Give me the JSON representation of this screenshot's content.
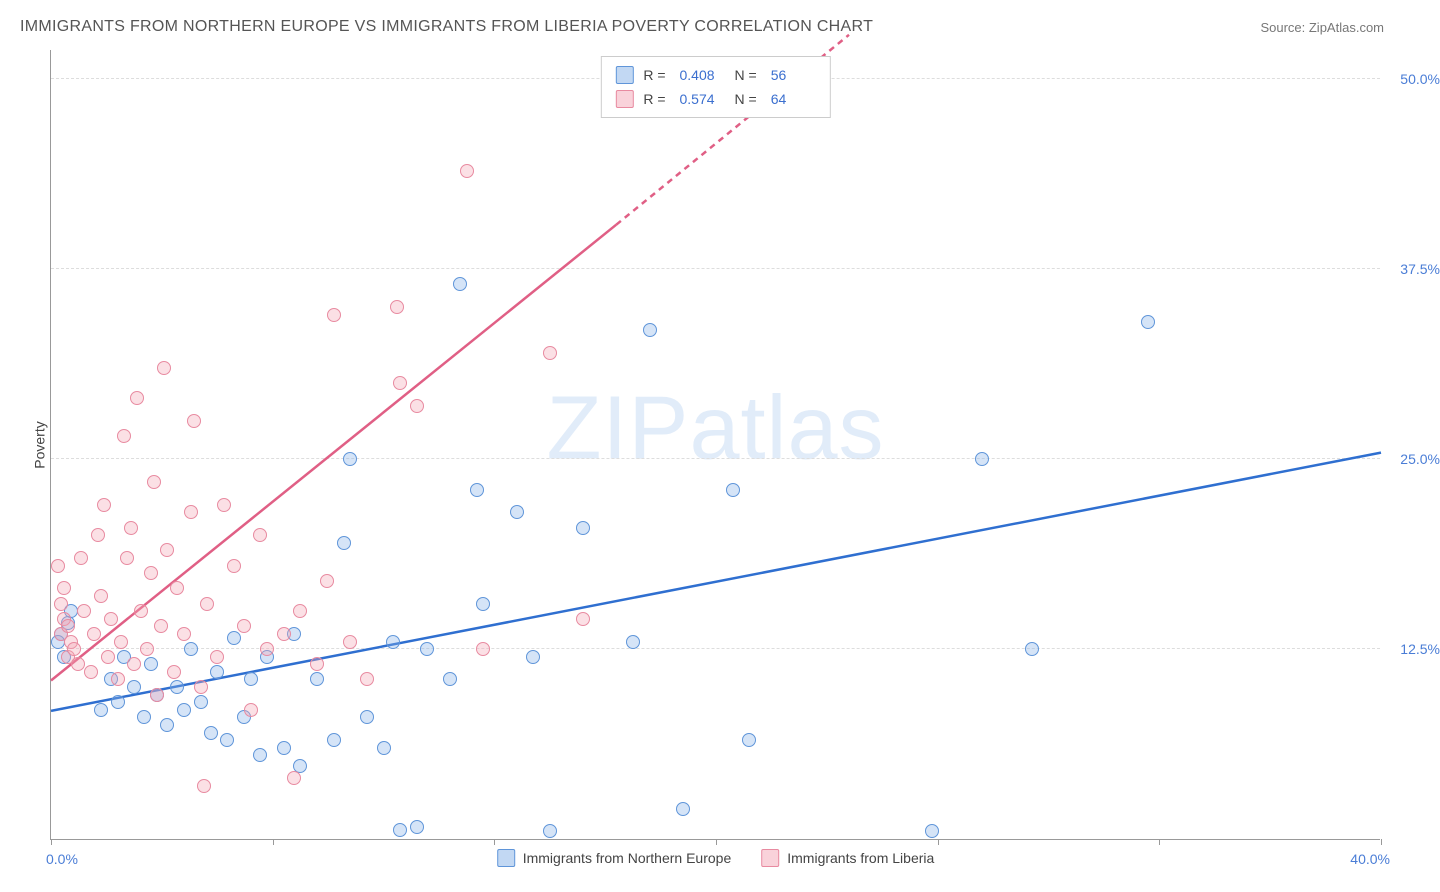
{
  "chart": {
    "title": "IMMIGRANTS FROM NORTHERN EUROPE VS IMMIGRANTS FROM LIBERIA POVERTY CORRELATION CHART",
    "source_label": "Source: ZipAtlas.com",
    "watermark_bold": "ZIP",
    "watermark_thin": "atlas",
    "yaxis_title": "Poverty",
    "type": "scatter-with-regression",
    "xlim": [
      0,
      40
    ],
    "ylim": [
      0,
      52
    ],
    "xtick_min_label": "0.0%",
    "xtick_max_label": "40.0%",
    "ytick_positions": [
      12.5,
      25.0,
      37.5,
      50.0
    ],
    "ytick_labels": [
      "12.5%",
      "25.0%",
      "37.5%",
      "50.0%"
    ],
    "xtick_positions": [
      0,
      6.67,
      13.33,
      20.0,
      26.67,
      33.33,
      40.0
    ],
    "grid_color": "#dddddd",
    "background_color": "#ffffff",
    "axis_color": "#999999",
    "series": [
      {
        "name": "Immigrants from Northern Europe",
        "short": "northern_europe",
        "color_fill": "rgba(134,178,231,0.35)",
        "color_stroke": "#5f95d9",
        "line_color": "#2f6fd0",
        "R_label": "R =",
        "R": "0.408",
        "N_label": "N =",
        "N": "56",
        "regression": {
          "x1": 0,
          "y1": 8.5,
          "x2": 40,
          "y2": 25.5
        },
        "marker_radius": 7,
        "points": [
          [
            0.3,
            13.5
          ],
          [
            0.5,
            14.2
          ],
          [
            0.4,
            12.0
          ],
          [
            0.6,
            15.0
          ],
          [
            0.2,
            13.0
          ],
          [
            1.5,
            8.5
          ],
          [
            1.8,
            10.5
          ],
          [
            2.0,
            9.0
          ],
          [
            2.2,
            12.0
          ],
          [
            2.5,
            10.0
          ],
          [
            2.8,
            8.0
          ],
          [
            3.0,
            11.5
          ],
          [
            3.2,
            9.5
          ],
          [
            3.5,
            7.5
          ],
          [
            3.8,
            10.0
          ],
          [
            4.0,
            8.5
          ],
          [
            4.2,
            12.5
          ],
          [
            4.5,
            9.0
          ],
          [
            4.8,
            7.0
          ],
          [
            5.0,
            11.0
          ],
          [
            5.3,
            6.5
          ],
          [
            5.5,
            13.2
          ],
          [
            5.8,
            8.0
          ],
          [
            6.0,
            10.5
          ],
          [
            6.3,
            5.5
          ],
          [
            6.5,
            12.0
          ],
          [
            7.0,
            6.0
          ],
          [
            7.3,
            13.5
          ],
          [
            7.5,
            4.8
          ],
          [
            8.0,
            10.5
          ],
          [
            8.5,
            6.5
          ],
          [
            8.8,
            19.5
          ],
          [
            9.0,
            25.0
          ],
          [
            9.5,
            8.0
          ],
          [
            10.0,
            6.0
          ],
          [
            10.3,
            13.0
          ],
          [
            10.5,
            0.6
          ],
          [
            11.0,
            0.8
          ],
          [
            11.3,
            12.5
          ],
          [
            12.0,
            10.5
          ],
          [
            12.3,
            36.5
          ],
          [
            12.8,
            23.0
          ],
          [
            13.0,
            15.5
          ],
          [
            14.0,
            21.5
          ],
          [
            14.5,
            12.0
          ],
          [
            15.0,
            0.5
          ],
          [
            16.0,
            20.5
          ],
          [
            17.5,
            13.0
          ],
          [
            18.0,
            33.5
          ],
          [
            19.0,
            2.0
          ],
          [
            20.5,
            23.0
          ],
          [
            21.0,
            6.5
          ],
          [
            26.5,
            0.5
          ],
          [
            28.0,
            25.0
          ],
          [
            33.0,
            34.0
          ],
          [
            29.5,
            12.5
          ]
        ]
      },
      {
        "name": "Immigrants from Liberia",
        "short": "liberia",
        "color_fill": "rgba(244,165,181,0.35)",
        "color_stroke": "#e88aa0",
        "line_color": "#e05f85",
        "R_label": "R =",
        "R": "0.574",
        "N_label": "N =",
        "N": "64",
        "regression": {
          "x1": 0,
          "y1": 10.5,
          "x2": 17,
          "y2": 40.5
        },
        "regression_dashed_extension": {
          "x1": 17,
          "y1": 40.5,
          "x2": 24,
          "y2": 53
        },
        "marker_radius": 7,
        "points": [
          [
            0.2,
            18.0
          ],
          [
            0.3,
            13.5
          ],
          [
            0.4,
            14.5
          ],
          [
            0.5,
            12.0
          ],
          [
            0.3,
            15.5
          ],
          [
            0.6,
            13.0
          ],
          [
            0.8,
            11.5
          ],
          [
            0.4,
            16.5
          ],
          [
            0.5,
            14.0
          ],
          [
            0.7,
            12.5
          ],
          [
            1.0,
            15.0
          ],
          [
            0.9,
            18.5
          ],
          [
            1.2,
            11.0
          ],
          [
            1.3,
            13.5
          ],
          [
            1.5,
            16.0
          ],
          [
            1.4,
            20.0
          ],
          [
            1.7,
            12.0
          ],
          [
            1.8,
            14.5
          ],
          [
            1.6,
            22.0
          ],
          [
            2.0,
            10.5
          ],
          [
            2.1,
            13.0
          ],
          [
            2.3,
            18.5
          ],
          [
            2.2,
            26.5
          ],
          [
            2.5,
            11.5
          ],
          [
            2.4,
            20.5
          ],
          [
            2.7,
            15.0
          ],
          [
            2.6,
            29.0
          ],
          [
            2.9,
            12.5
          ],
          [
            3.0,
            17.5
          ],
          [
            3.2,
            9.5
          ],
          [
            3.1,
            23.5
          ],
          [
            3.3,
            14.0
          ],
          [
            3.5,
            19.0
          ],
          [
            3.4,
            31.0
          ],
          [
            3.7,
            11.0
          ],
          [
            3.8,
            16.5
          ],
          [
            4.0,
            13.5
          ],
          [
            4.2,
            21.5
          ],
          [
            4.3,
            27.5
          ],
          [
            4.5,
            10.0
          ],
          [
            4.7,
            15.5
          ],
          [
            4.6,
            3.5
          ],
          [
            5.0,
            12.0
          ],
          [
            5.2,
            22.0
          ],
          [
            5.5,
            18.0
          ],
          [
            5.8,
            14.0
          ],
          [
            6.0,
            8.5
          ],
          [
            6.3,
            20.0
          ],
          [
            6.5,
            12.5
          ],
          [
            7.0,
            13.5
          ],
          [
            7.3,
            4.0
          ],
          [
            7.5,
            15.0
          ],
          [
            8.0,
            11.5
          ],
          [
            8.3,
            17.0
          ],
          [
            8.5,
            34.5
          ],
          [
            9.0,
            13.0
          ],
          [
            9.5,
            10.5
          ],
          [
            10.5,
            30.0
          ],
          [
            10.4,
            35.0
          ],
          [
            11.0,
            28.5
          ],
          [
            12.5,
            44.0
          ],
          [
            13.0,
            12.5
          ],
          [
            15.0,
            32.0
          ],
          [
            16.0,
            14.5
          ]
        ]
      }
    ]
  }
}
